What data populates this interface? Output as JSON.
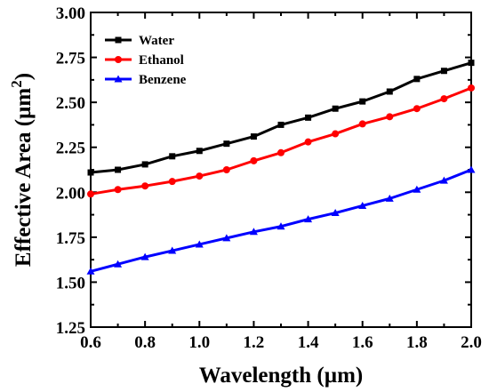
{
  "chart_data": {
    "type": "line",
    "xlabel": "Wavelength (µm)",
    "ylabel_prefix": "Effective Area (µm",
    "ylabel_sup": "2",
    "ylabel_suffix": ")",
    "xlim": [
      0.6,
      2.0
    ],
    "ylim": [
      1.25,
      3.0
    ],
    "x_ticks": [
      0.6,
      0.8,
      1.0,
      1.2,
      1.4,
      1.6,
      1.8,
      2.0
    ],
    "x_tick_labels": [
      "0.6",
      "0.8",
      "1.0",
      "1.2",
      "1.4",
      "1.6",
      "1.8",
      "2.0"
    ],
    "y_ticks": [
      1.25,
      1.5,
      1.75,
      2.0,
      2.25,
      2.5,
      2.75,
      3.0
    ],
    "y_tick_labels": [
      "1.25",
      "1.50",
      "1.75",
      "2.00",
      "2.25",
      "2.50",
      "2.75",
      "3.00"
    ],
    "grid": false,
    "legend_position": "top-left",
    "x": [
      0.6,
      0.7,
      0.8,
      0.9,
      1.0,
      1.1,
      1.2,
      1.3,
      1.4,
      1.5,
      1.6,
      1.7,
      1.8,
      1.9,
      2.0
    ],
    "series": [
      {
        "name": "Water",
        "color": "#000000",
        "marker": "square",
        "values": [
          2.11,
          2.125,
          2.155,
          2.2,
          2.23,
          2.27,
          2.31,
          2.375,
          2.415,
          2.465,
          2.505,
          2.56,
          2.63,
          2.675,
          2.72
        ]
      },
      {
        "name": "Ethanol",
        "color": "#ff0000",
        "marker": "circle",
        "values": [
          1.99,
          2.015,
          2.035,
          2.06,
          2.09,
          2.125,
          2.175,
          2.22,
          2.28,
          2.325,
          2.38,
          2.42,
          2.465,
          2.52,
          2.58
        ]
      },
      {
        "name": "Benzene",
        "color": "#0000ff",
        "marker": "triangle",
        "values": [
          1.56,
          1.6,
          1.64,
          1.675,
          1.71,
          1.745,
          1.78,
          1.81,
          1.85,
          1.885,
          1.925,
          1.965,
          2.015,
          2.065,
          2.125
        ]
      }
    ]
  }
}
